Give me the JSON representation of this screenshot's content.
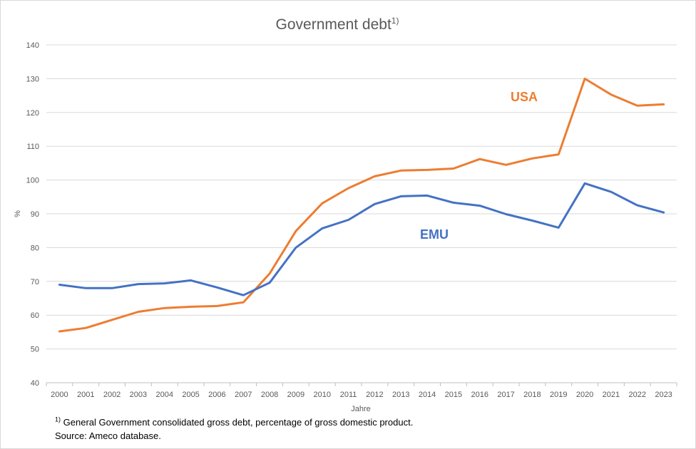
{
  "chart_data": {
    "type": "line",
    "title": "Government debt",
    "title_footnote_mark": "1)",
    "xlabel": "Jahre",
    "ylabel": "%",
    "ylim": [
      40,
      140
    ],
    "yticks": [
      40,
      50,
      60,
      70,
      80,
      90,
      100,
      110,
      120,
      130,
      140
    ],
    "grid": true,
    "categories": [
      "2000",
      "2001",
      "2002",
      "2003",
      "2004",
      "2005",
      "2006",
      "2007",
      "2008",
      "2009",
      "2010",
      "2011",
      "2012",
      "2013",
      "2014",
      "2015",
      "2016",
      "2017",
      "2018",
      "2019",
      "2020",
      "2021",
      "2022",
      "2023"
    ],
    "series": [
      {
        "name": "USA",
        "color": "#ed7d31",
        "values": [
          55.2,
          56.2,
          58.6,
          61.0,
          62.1,
          62.5,
          62.7,
          63.8,
          72.3,
          84.9,
          93.1,
          97.6,
          101.1,
          102.8,
          103.0,
          103.4,
          106.2,
          104.5,
          106.4,
          107.6,
          130.0,
          125.3,
          122.0,
          122.4
        ]
      },
      {
        "name": "EMU",
        "color": "#4472c4",
        "values": [
          69.0,
          68.0,
          68.0,
          69.2,
          69.4,
          70.3,
          68.2,
          65.9,
          69.6,
          80.0,
          85.7,
          88.2,
          92.9,
          95.2,
          95.4,
          93.3,
          92.4,
          89.9,
          88.0,
          85.9,
          99.0,
          96.5,
          92.5,
          90.4
        ]
      }
    ]
  },
  "footnote": {
    "mark": "1)",
    "text": "General Government consolidated gross debt, percentage of gross domestic product.",
    "source": "Source: Ameco database."
  }
}
